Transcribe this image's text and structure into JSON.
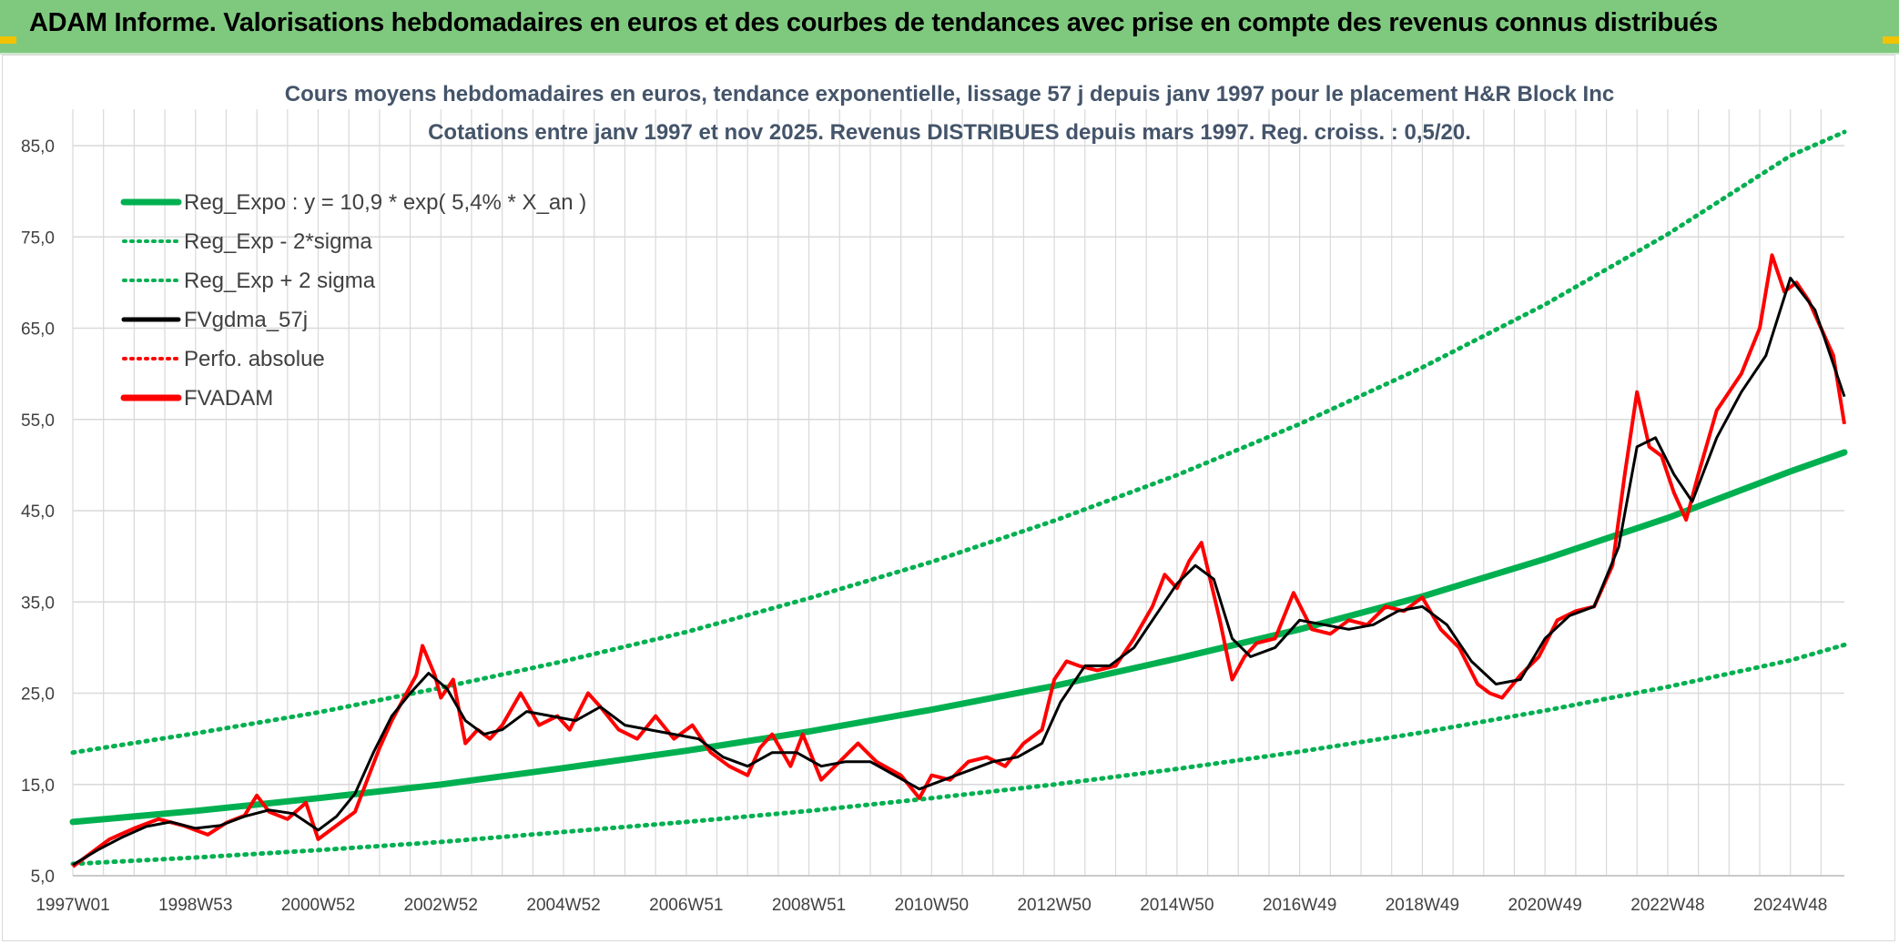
{
  "banner": {
    "title": "ADAM Informe. Valorisations hebdomadaires en euros et des courbes de tendances avec prise en compte des revenus connus distribués"
  },
  "colors": {
    "banner_bg": "#7fc97f",
    "green": "#00b050",
    "black": "#000000",
    "red": "#ff0000",
    "grid": "#d9d9d9",
    "axis_text": "#404040",
    "title_text": "#44546a"
  },
  "chart_data": {
    "type": "line",
    "title": "Cours moyens hebdomadaires en euros, tendance exponentielle, lissage 57 j depuis janv 1997 pour le placement H&R Block Inc",
    "subtitle": "Cotations entre janv 1997 et nov 2025. Revenus DISTRIBUES depuis mars 1997. Reg. croiss. : 0,5/20.",
    "xlabel": "",
    "ylabel": "",
    "ylim": [
      5,
      86
    ],
    "xlim": [
      1997.0,
      2025.88
    ],
    "y_ticks": [
      "5,0",
      "15,0",
      "25,0",
      "35,0",
      "45,0",
      "55,0",
      "65,0",
      "75,0",
      "85,0"
    ],
    "y_tick_values": [
      5,
      15,
      25,
      35,
      45,
      55,
      65,
      75,
      85
    ],
    "x_ticks": [
      "1997W01",
      "1998W53",
      "2000W52",
      "2002W52",
      "2004W52",
      "2006W51",
      "2008W51",
      "2010W50",
      "2012W50",
      "2014W50",
      "2016W49",
      "2018W49",
      "2020W49",
      "2022W48",
      "2024W48"
    ],
    "x_tick_values": [
      1997.0,
      1999.0,
      2001.0,
      2003.0,
      2005.0,
      2007.0,
      2009.0,
      2011.0,
      2013.0,
      2015.0,
      2017.0,
      2019.0,
      2021.0,
      2023.0,
      2025.0
    ],
    "grid": true,
    "legend_position": "top-left",
    "legend": [
      {
        "name": "Reg_Expo : y = 10,9 * exp( 5,4% *  X_an )",
        "style": "solid-thick",
        "color": "#00b050"
      },
      {
        "name": "Reg_Exp - 2*sigma",
        "style": "dotted",
        "color": "#00b050"
      },
      {
        "name": "Reg_Exp + 2 sigma",
        "style": "dotted",
        "color": "#00b050"
      },
      {
        "name": "FVgdma_57j",
        "style": "solid",
        "color": "#000000"
      },
      {
        "name": "Perfo. absolue",
        "style": "dotted",
        "color": "#ff0000"
      },
      {
        "name": "FVADAM",
        "style": "solid-thick",
        "color": "#ff0000"
      }
    ],
    "trend": {
      "x": [
        1997.0,
        1999.0,
        2001.0,
        2003.0,
        2005.0,
        2007.0,
        2009.0,
        2011.0,
        2013.0,
        2015.0,
        2017.0,
        2019.0,
        2021.0,
        2023.0,
        2025.0,
        2025.88
      ],
      "reg_expo": [
        10.9,
        12.1,
        13.5,
        15.0,
        16.8,
        18.7,
        20.8,
        23.2,
        25.8,
        28.8,
        32.0,
        35.6,
        39.7,
        44.2,
        49.3,
        51.4
      ],
      "minus_2sigma": [
        6.3,
        7.0,
        7.8,
        8.7,
        9.8,
        10.9,
        12.1,
        13.5,
        15.0,
        16.7,
        18.6,
        20.7,
        23.1,
        25.7,
        28.6,
        30.3
      ],
      "plus_2sigma": [
        18.5,
        20.6,
        22.9,
        25.6,
        28.5,
        31.7,
        35.4,
        39.4,
        43.9,
        48.9,
        54.5,
        60.7,
        67.6,
        75.3,
        83.9,
        86.5
      ]
    },
    "series": [
      {
        "name": "FVADAM",
        "x": [
          1997.0,
          1997.3,
          1997.6,
          1998.0,
          1998.4,
          1998.8,
          1999.2,
          1999.5,
          1999.8,
          2000.0,
          2000.2,
          2000.5,
          2000.8,
          2001.0,
          2001.3,
          2001.6,
          2001.8,
          2002.0,
          2002.2,
          2002.4,
          2002.6,
          2002.7,
          2002.9,
          2003.0,
          2003.2,
          2003.4,
          2003.6,
          2003.8,
          2004.0,
          2004.3,
          2004.6,
          2004.9,
          2005.1,
          2005.4,
          2005.6,
          2005.9,
          2006.2,
          2006.5,
          2006.8,
          2007.1,
          2007.4,
          2007.7,
          2008.0,
          2008.2,
          2008.4,
          2008.7,
          2008.9,
          2009.2,
          2009.5,
          2009.8,
          2010.1,
          2010.5,
          2010.8,
          2011.0,
          2011.3,
          2011.6,
          2011.9,
          2012.2,
          2012.5,
          2012.8,
          2013.0,
          2013.2,
          2013.4,
          2013.7,
          2014.0,
          2014.3,
          2014.6,
          2014.8,
          2015.0,
          2015.2,
          2015.4,
          2015.7,
          2015.9,
          2016.1,
          2016.3,
          2016.6,
          2016.9,
          2017.2,
          2017.5,
          2017.8,
          2018.1,
          2018.4,
          2018.7,
          2019.0,
          2019.3,
          2019.6,
          2019.9,
          2020.1,
          2020.3,
          2020.6,
          2020.9,
          2021.2,
          2021.5,
          2021.8,
          2022.1,
          2022.3,
          2022.5,
          2022.7,
          2022.9,
          2023.1,
          2023.3,
          2023.5,
          2023.8,
          2024.0,
          2024.2,
          2024.5,
          2024.7,
          2024.9,
          2025.1,
          2025.3,
          2025.5,
          2025.7,
          2025.88
        ],
        "y": [
          6.0,
          7.5,
          9.0,
          10.2,
          11.2,
          10.5,
          9.5,
          10.8,
          11.6,
          13.8,
          12.0,
          11.2,
          13.0,
          9.0,
          10.5,
          12.0,
          15.5,
          19.0,
          22.0,
          24.5,
          27.0,
          30.2,
          27.0,
          24.5,
          26.5,
          19.5,
          21.0,
          20.0,
          21.5,
          25.0,
          21.5,
          22.5,
          21.0,
          25.0,
          23.5,
          21.0,
          20.0,
          22.5,
          20.0,
          21.5,
          18.5,
          17.0,
          16.0,
          19.0,
          20.5,
          17.0,
          20.5,
          15.5,
          17.5,
          19.5,
          17.5,
          16.0,
          13.5,
          16.0,
          15.5,
          17.5,
          18.0,
          17.0,
          19.5,
          21.0,
          26.5,
          28.5,
          28.0,
          27.5,
          28.0,
          31.0,
          34.5,
          38.0,
          36.5,
          39.5,
          41.5,
          33.0,
          26.5,
          29.0,
          30.5,
          31.0,
          36.0,
          32.0,
          31.5,
          33.0,
          32.5,
          34.5,
          34.0,
          35.5,
          32.0,
          30.0,
          26.0,
          25.0,
          24.5,
          27.0,
          29.0,
          33.0,
          34.0,
          34.5,
          39.0,
          49.0,
          58.0,
          52.0,
          51.0,
          47.0,
          44.0,
          49.0,
          56.0,
          58.0,
          60.0,
          65.0,
          73.0,
          69.0,
          70.0,
          68.0,
          65.0,
          62.0,
          54.5
        ]
      },
      {
        "name": "FVgdma_57j",
        "x": [
          1997.0,
          1997.4,
          1997.8,
          1998.2,
          1998.6,
          1999.0,
          1999.4,
          1999.8,
          2000.2,
          2000.6,
          2001.0,
          2001.3,
          2001.6,
          2001.9,
          2002.2,
          2002.5,
          2002.8,
          2003.1,
          2003.4,
          2003.7,
          2004.0,
          2004.4,
          2004.8,
          2005.2,
          2005.6,
          2006.0,
          2006.4,
          2006.8,
          2007.2,
          2007.6,
          2008.0,
          2008.4,
          2008.8,
          2009.2,
          2009.6,
          2010.0,
          2010.4,
          2010.8,
          2011.2,
          2011.6,
          2012.0,
          2012.4,
          2012.8,
          2013.1,
          2013.5,
          2013.9,
          2014.3,
          2014.7,
          2015.0,
          2015.3,
          2015.6,
          2015.9,
          2016.2,
          2016.6,
          2017.0,
          2017.4,
          2017.8,
          2018.2,
          2018.6,
          2019.0,
          2019.4,
          2019.8,
          2020.2,
          2020.6,
          2021.0,
          2021.4,
          2021.8,
          2022.2,
          2022.5,
          2022.8,
          2023.1,
          2023.4,
          2023.8,
          2024.2,
          2024.6,
          2025.0,
          2025.4,
          2025.88
        ],
        "y": [
          6.2,
          7.8,
          9.2,
          10.4,
          10.9,
          10.2,
          10.5,
          11.5,
          12.2,
          11.8,
          10.0,
          11.5,
          14.0,
          18.5,
          22.5,
          25.0,
          27.2,
          25.5,
          22.0,
          20.5,
          21.0,
          23.0,
          22.5,
          22.0,
          23.5,
          21.5,
          21.0,
          20.5,
          20.0,
          18.0,
          17.0,
          18.5,
          18.5,
          17.0,
          17.5,
          17.5,
          16.0,
          14.5,
          15.5,
          16.5,
          17.5,
          18.0,
          19.5,
          24.0,
          28.0,
          28.0,
          30.0,
          34.0,
          37.0,
          39.0,
          37.5,
          31.0,
          29.0,
          30.0,
          33.0,
          32.5,
          32.0,
          32.5,
          34.0,
          34.5,
          32.5,
          28.5,
          26.0,
          26.5,
          31.0,
          33.5,
          34.5,
          41.0,
          52.0,
          53.0,
          49.0,
          46.0,
          53.0,
          58.0,
          62.0,
          70.5,
          67.0,
          57.5
        ]
      }
    ]
  }
}
